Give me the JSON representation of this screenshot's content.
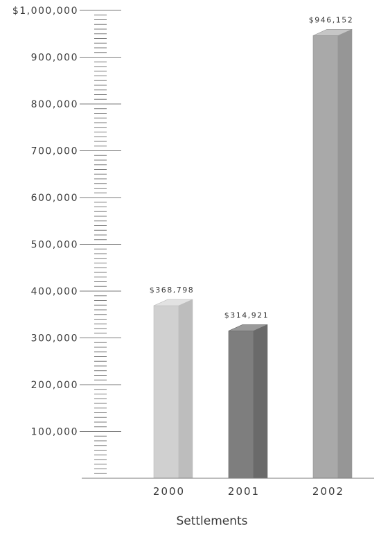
{
  "chart_data": {
    "type": "bar",
    "categories": [
      "2000",
      "2001",
      "2002"
    ],
    "values": [
      368798,
      314921,
      946152
    ],
    "value_labels": [
      "$368,798",
      "$314,921",
      "$946,152"
    ],
    "xlabel": "Settlements",
    "ylabel": "",
    "ylim": [
      0,
      1000000
    ],
    "yticks": [
      100000,
      200000,
      300000,
      400000,
      500000,
      600000,
      700000,
      800000,
      900000,
      1000000
    ],
    "ytick_labels": [
      "100,000",
      "200,000",
      "300,000",
      "400,000",
      "500,000",
      "600,000",
      "700,000",
      "800,000",
      "900,000",
      "$1,000,000"
    ],
    "minor_ticks_per_major": 10,
    "grid": false,
    "legend": "none",
    "bar_colors": [
      {
        "front": "#d0d0d0",
        "side": "#bdbdbd",
        "top": "#e2e2e2"
      },
      {
        "front": "#7e7e7e",
        "side": "#6a6a6a",
        "top": "#9a9a9a"
      },
      {
        "front": "#a9a9a9",
        "side": "#969696",
        "top": "#c6c6c6"
      }
    ],
    "axis_color": "#7a7a7a"
  }
}
